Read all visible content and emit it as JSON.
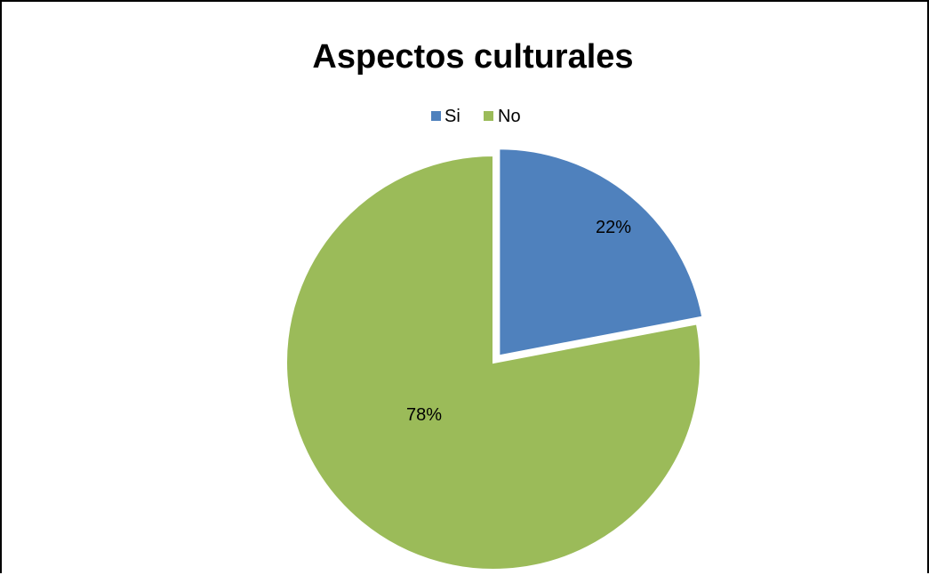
{
  "chart_data": {
    "type": "pie",
    "title": "Aspectos culturales",
    "legend_position": "top",
    "slices": [
      {
        "label": "Si",
        "value": 22,
        "display": "22%",
        "color": "#4F81BD",
        "exploded": true
      },
      {
        "label": "No",
        "value": 78,
        "display": "78%",
        "color": "#9BBB59",
        "exploded": false
      }
    ]
  }
}
